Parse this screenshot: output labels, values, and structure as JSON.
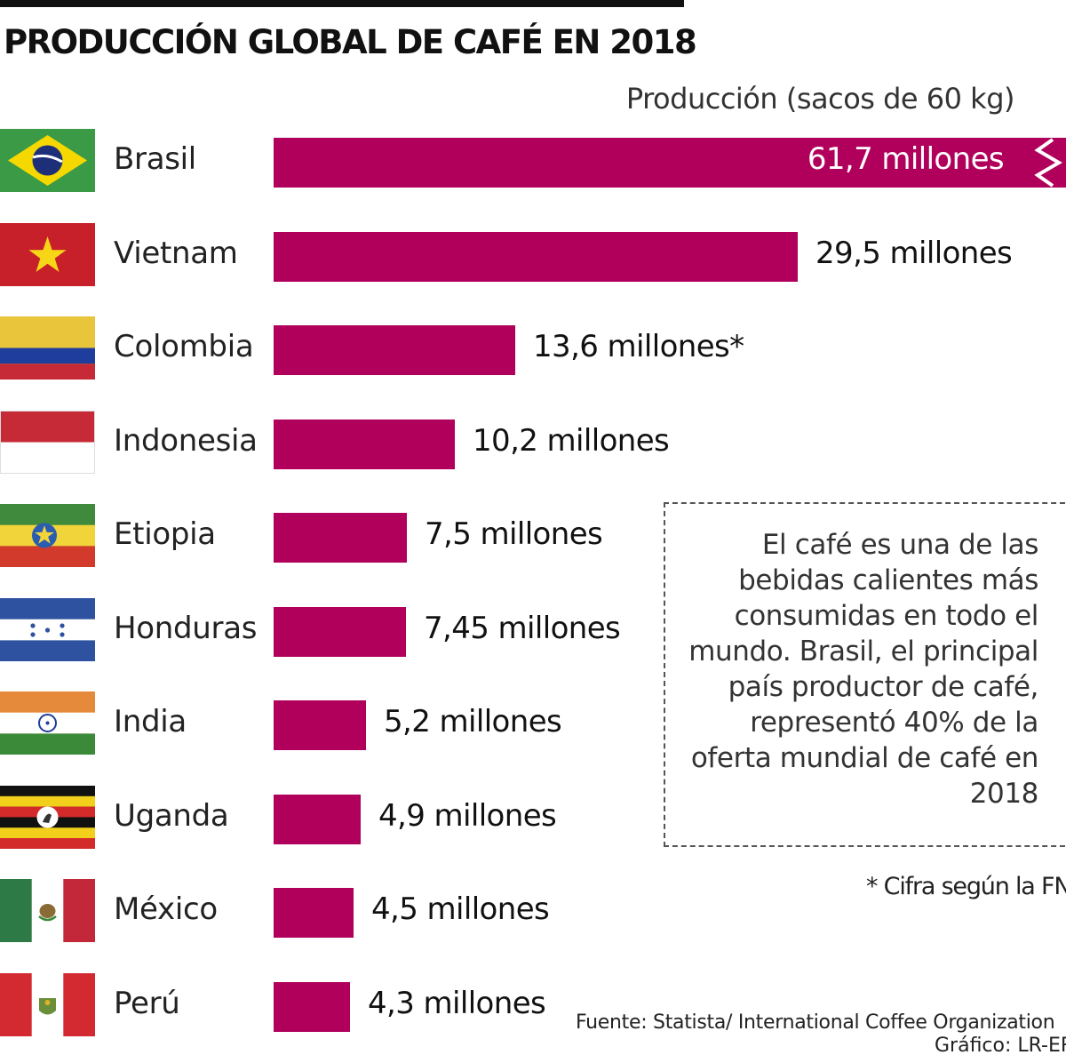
{
  "header": {
    "title": "PRODUCCIÓN GLOBAL DE CAFÉ EN 2018",
    "unit_label": "Producción (sacos de 60 kg)"
  },
  "chart_data": {
    "type": "bar",
    "orientation": "horizontal",
    "title": "PRODUCCIÓN GLOBAL DE CAFÉ EN 2018",
    "unit": "Producción (sacos de 60 kg)",
    "axis_break_on": "Brasil",
    "categories": [
      "Brasil",
      "Vietnam",
      "Colombia",
      "Indonesia",
      "Etiopia",
      "Honduras",
      "India",
      "Uganda",
      "México",
      "Perú"
    ],
    "values": [
      61.7,
      29.5,
      13.6,
      10.2,
      7.5,
      7.45,
      5.2,
      4.9,
      4.5,
      4.3
    ],
    "labels": [
      "61,7 millones",
      "29,5 millones",
      "13,6 millones*",
      "10,2 millones",
      "7,5 millones",
      "7,45 millones",
      "5,2 millones",
      "4,9 millones",
      "4,5 millones",
      "4,3 millones"
    ],
    "bar_color": "#b1005c",
    "flags": [
      "brazil-flag-icon",
      "vietnam-flag-icon",
      "colombia-flag-icon",
      "indonesia-flag-icon",
      "ethiopia-flag-icon",
      "honduras-flag-icon",
      "india-flag-icon",
      "uganda-flag-icon",
      "mexico-flag-icon",
      "peru-flag-icon"
    ]
  },
  "note": {
    "text": "El café es una de las bebidas calientes más consumidas en todo el mundo. Brasil, el principal país productor de café, representó 40% de la oferta mundial de café en 2018"
  },
  "footnote": "* Cifra según la FNC",
  "source": "Fuente: Statista/ International Coffee Organization",
  "credit": "Gráfico: LR-ER"
}
